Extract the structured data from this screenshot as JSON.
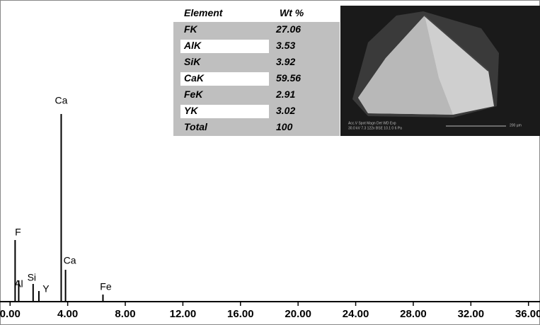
{
  "chart_data": {
    "type": "spectrum",
    "categories": [
      "F",
      "Al",
      "Si",
      "Y",
      "Ca",
      "Ca",
      "Fe"
    ],
    "x": [
      0.35,
      0.6,
      1.6,
      2.0,
      3.55,
      3.85,
      6.45
    ],
    "values": [
      87,
      30,
      25,
      15,
      265,
      45,
      10
    ],
    "color": "#000000",
    "xlim": [
      -0.7,
      36.8
    ],
    "xticks": [
      {
        "value": 0,
        "label": "0.00"
      },
      {
        "value": 4,
        "label": "4.00"
      },
      {
        "value": 8,
        "label": "8.00"
      },
      {
        "value": 12,
        "label": "12.00"
      },
      {
        "value": 16,
        "label": "16.00"
      },
      {
        "value": 20,
        "label": "20.00"
      },
      {
        "value": 24,
        "label": "24.00"
      },
      {
        "value": 28,
        "label": "28.00"
      },
      {
        "value": 32,
        "label": "32.00"
      },
      {
        "value": 36,
        "label": "36.00"
      }
    ]
  },
  "table": {
    "header": [
      "Element",
      "Wt %"
    ],
    "rows": [
      [
        "FK",
        "27.06"
      ],
      [
        "AlK",
        "3.53"
      ],
      [
        "SiK",
        "3.92"
      ],
      [
        "CaK",
        "59.56"
      ],
      [
        "FeK",
        "2.91"
      ],
      [
        "YK",
        "3.02"
      ],
      [
        "Total",
        "100"
      ]
    ]
  },
  "micrograph": {
    "info_header": "Acc.V  Spot Magn    Det  WD  Exp",
    "info_values": "30.0 kV 7.3  122x   BSE 10.1  0     6 Pa",
    "scale_label": "200 µm"
  }
}
